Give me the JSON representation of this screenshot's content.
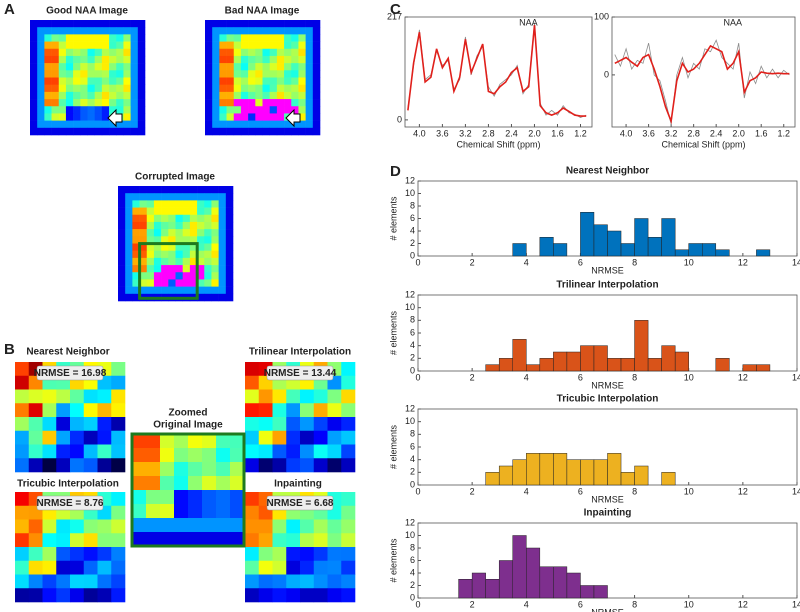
{
  "panel_labels": [
    "A",
    "B",
    "C",
    "D"
  ],
  "panel_a": {
    "images": [
      {
        "title": "Good NAA Image"
      },
      {
        "title": "Bad NAA Image"
      },
      {
        "title": "Corrupted Image"
      }
    ]
  },
  "panel_b": {
    "zoomed_title": [
      "Zoomed",
      "Original Image"
    ],
    "methods": [
      {
        "title": "Nearest Neighbor",
        "nrmse_label": "NRMSE = 16.98"
      },
      {
        "title": "Trilinear Interpolation",
        "nrmse_label": "NRMSE = 13.44"
      },
      {
        "title": "Tricubic Interpolation",
        "nrmse_label": "NRMSE = 8.76"
      },
      {
        "title": "Inpainting",
        "nrmse_label": "NRMSE = 6.68"
      }
    ]
  },
  "chart_data": [
    {
      "type": "line",
      "annotation": "NAA",
      "xlabel": "Chemical Shift (ppm)",
      "x": [
        4.2,
        4.1,
        4.0,
        3.9,
        3.8,
        3.7,
        3.6,
        3.5,
        3.4,
        3.3,
        3.2,
        3.1,
        3.0,
        2.9,
        2.8,
        2.7,
        2.6,
        2.5,
        2.4,
        2.3,
        2.2,
        2.1,
        2.0,
        1.9,
        1.8,
        1.7,
        1.6,
        1.5,
        1.4,
        1.3,
        1.2,
        1.1
      ],
      "series": [
        {
          "color": "#8c8c8c",
          "values": [
            25,
            115,
            190,
            85,
            95,
            145,
            115,
            125,
            65,
            85,
            175,
            95,
            135,
            155,
            70,
            50,
            75,
            85,
            95,
            115,
            55,
            75,
            205,
            35,
            10,
            20,
            10,
            30,
            15,
            12,
            5,
            10
          ]
        },
        {
          "color": "#e0201b",
          "values": [
            20,
            120,
            185,
            80,
            90,
            150,
            110,
            130,
            60,
            90,
            170,
            100,
            130,
            160,
            60,
            55,
            70,
            80,
            100,
            110,
            60,
            70,
            200,
            30,
            15,
            10,
            15,
            25,
            18,
            10,
            8,
            8
          ]
        }
      ],
      "xlim": [
        4.25,
        1.0
      ],
      "ylim": [
        -15,
        217
      ],
      "xticks": [
        {
          "value": 4,
          "label": "4.0"
        },
        3.6,
        3.2,
        2.8,
        2.4,
        {
          "value": 2,
          "label": "2.0"
        },
        1.6,
        1.2
      ],
      "yticks": [
        0,
        217
      ]
    },
    {
      "type": "line",
      "annotation": "NAA",
      "xlabel": "Chemical Shift (ppm)",
      "x": [
        4.2,
        4.1,
        4.0,
        3.9,
        3.8,
        3.7,
        3.6,
        3.5,
        3.4,
        3.3,
        3.2,
        3.1,
        3.0,
        2.9,
        2.8,
        2.7,
        2.6,
        2.5,
        2.4,
        2.3,
        2.2,
        2.1,
        2.0,
        1.9,
        1.8,
        1.7,
        1.6,
        1.5,
        1.4,
        1.3,
        1.2,
        1.1
      ],
      "series": [
        {
          "color": "#8c8c8c",
          "values": [
            35,
            15,
            45,
            10,
            25,
            20,
            55,
            0,
            -10,
            -45,
            -85,
            0,
            30,
            -5,
            20,
            10,
            45,
            40,
            60,
            30,
            20,
            10,
            55,
            -40,
            5,
            -15,
            15,
            -5,
            10,
            -5,
            8,
            0
          ]
        },
        {
          "color": "#e0201b",
          "values": [
            20,
            25,
            30,
            22,
            15,
            30,
            35,
            10,
            -20,
            -55,
            -80,
            -10,
            20,
            5,
            10,
            20,
            35,
            50,
            45,
            40,
            10,
            20,
            40,
            -30,
            -10,
            -5,
            5,
            3,
            2,
            3,
            2,
            2
          ]
        }
      ],
      "xlim": [
        4.25,
        1.0
      ],
      "ylim": [
        -90,
        100
      ],
      "xticks": [
        {
          "value": 4,
          "label": "4.0"
        },
        3.6,
        3.2,
        2.8,
        2.4,
        {
          "value": 2,
          "label": "2.0"
        },
        1.6,
        1.2
      ],
      "yticks": [
        0,
        100
      ]
    },
    {
      "type": "histogram",
      "title": "Nearest Neighbor",
      "xlabel": "NRMSE",
      "ylabel": "# elements",
      "color": "#0072bd",
      "bins": [
        1.5,
        2,
        2.5,
        3,
        3.5,
        4,
        4.5,
        5,
        5.5,
        6,
        6.5,
        7,
        7.5,
        8,
        8.5,
        9,
        9.5,
        10,
        10.5,
        11,
        11.5,
        12,
        12.5,
        13
      ],
      "counts": [
        0,
        0,
        0,
        0,
        2,
        0,
        3,
        2,
        0,
        7,
        5,
        4,
        2,
        6,
        3,
        6,
        1,
        2,
        2,
        1,
        0,
        0,
        1
      ],
      "xlim": [
        0,
        14
      ],
      "ylim": [
        0,
        12
      ],
      "xticks": [
        0,
        2,
        4,
        6,
        8,
        10,
        12,
        14
      ],
      "yticks": [
        0,
        2,
        4,
        6,
        8,
        10,
        12
      ]
    },
    {
      "type": "histogram",
      "title": "Trilinear Interpolation",
      "xlabel": "NRMSE",
      "ylabel": "# elements",
      "color": "#d95319",
      "bins": [
        1.5,
        2,
        2.5,
        3,
        3.5,
        4,
        4.5,
        5,
        5.5,
        6,
        6.5,
        7,
        7.5,
        8,
        8.5,
        9,
        9.5,
        10,
        10.5,
        11,
        11.5,
        12,
        12.5,
        13
      ],
      "counts": [
        0,
        0,
        1,
        2,
        5,
        1,
        2,
        3,
        3,
        4,
        4,
        2,
        2,
        8,
        2,
        4,
        3,
        0,
        0,
        2,
        0,
        1,
        1
      ],
      "xlim": [
        0,
        14
      ],
      "ylim": [
        0,
        12
      ],
      "xticks": [
        0,
        2,
        4,
        6,
        8,
        10,
        12,
        14
      ],
      "yticks": [
        0,
        2,
        4,
        6,
        8,
        10,
        12
      ]
    },
    {
      "type": "histogram",
      "title": "Tricubic Interpolation",
      "xlabel": "NRMSE",
      "ylabel": "# elements",
      "color": "#edb120",
      "bins": [
        1.5,
        2,
        2.5,
        3,
        3.5,
        4,
        4.5,
        5,
        5.5,
        6,
        6.5,
        7,
        7.5,
        8,
        8.5,
        9,
        9.5,
        10,
        10.5,
        11,
        11.5,
        12,
        12.5,
        13
      ],
      "counts": [
        0,
        0,
        2,
        3,
        4,
        5,
        5,
        5,
        4,
        4,
        4,
        5,
        2,
        3,
        0,
        2,
        0,
        0,
        0,
        0,
        0,
        0,
        0
      ],
      "xlim": [
        0,
        14
      ],
      "ylim": [
        0,
        12
      ],
      "xticks": [
        0,
        2,
        4,
        6,
        8,
        10,
        12,
        14
      ],
      "yticks": [
        0,
        2,
        4,
        6,
        8,
        10,
        12
      ]
    },
    {
      "type": "histogram",
      "title": "Inpainting",
      "xlabel": "NRMSE",
      "ylabel": "# elements",
      "color": "#7e2f8e",
      "bins": [
        1.5,
        2,
        2.5,
        3,
        3.5,
        4,
        4.5,
        5,
        5.5,
        6,
        6.5,
        7,
        7.5,
        8,
        8.5,
        9,
        9.5,
        10,
        10.5,
        11,
        11.5,
        12,
        12.5,
        13
      ],
      "counts": [
        3,
        4,
        3,
        6,
        10,
        8,
        5,
        5,
        4,
        2,
        2,
        0,
        0,
        0,
        0,
        0,
        0,
        0,
        0,
        0,
        0,
        0,
        0
      ],
      "xlim": [
        0,
        14
      ],
      "ylim": [
        0,
        12
      ],
      "xticks": [
        0,
        2,
        4,
        6,
        8,
        10,
        12,
        14
      ],
      "yticks": [
        0,
        2,
        4,
        6,
        8,
        10,
        12
      ]
    }
  ]
}
